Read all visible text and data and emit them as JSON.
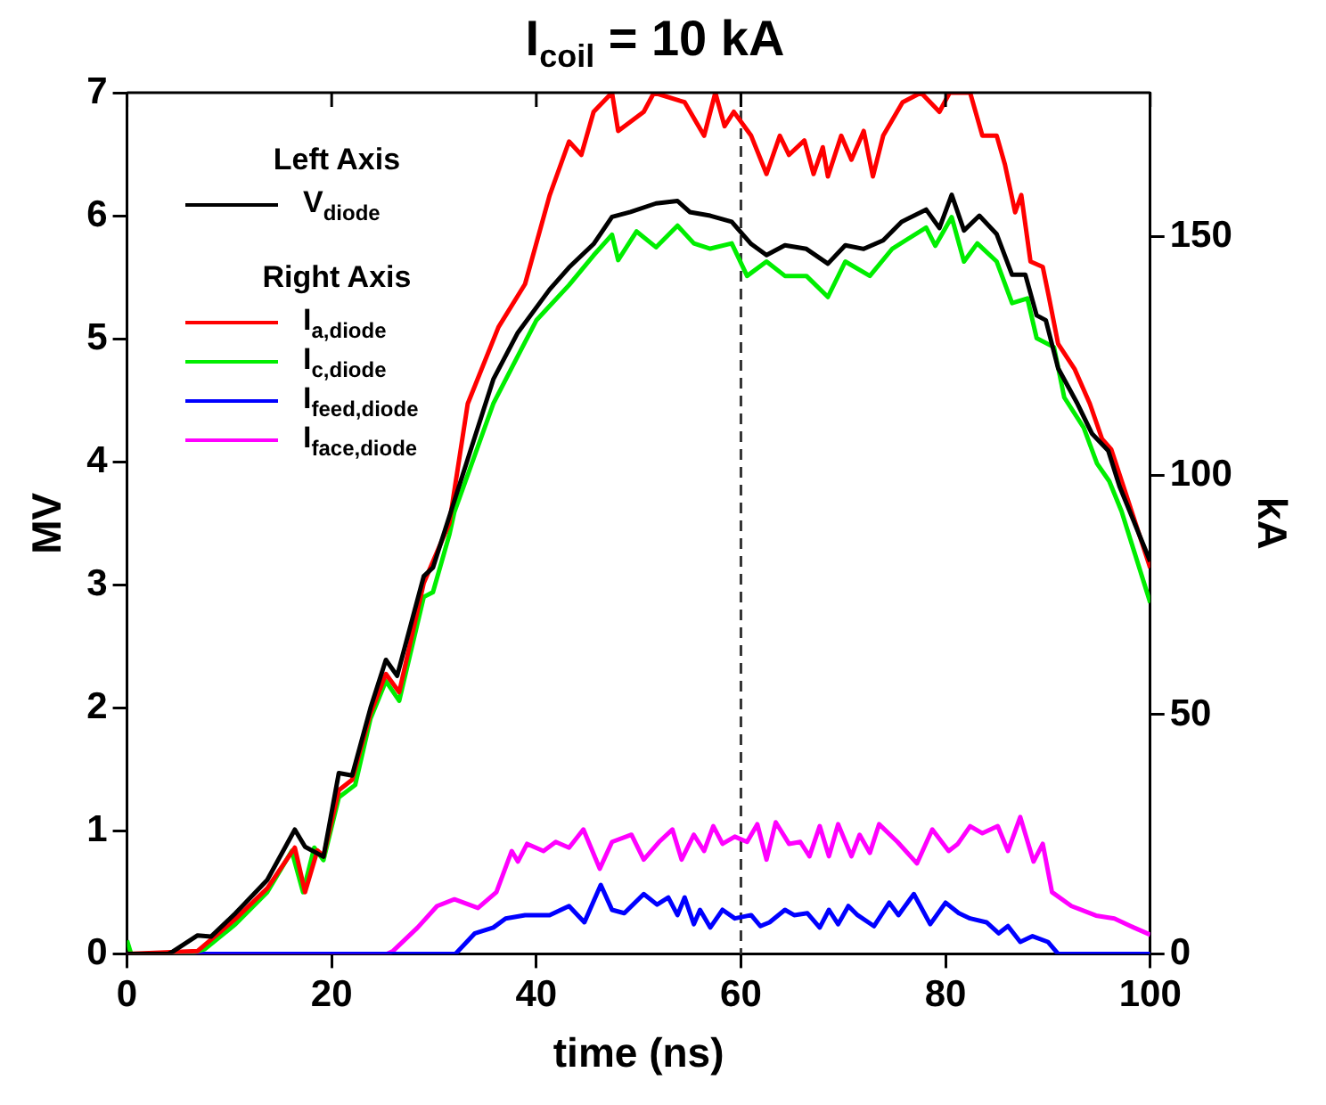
{
  "chart_data": {
    "type": "line",
    "title": "I$_{coil}$ = 10 kA",
    "xlabel": "time (ns)",
    "ylabel": "MV",
    "y2label": "kA",
    "xlim": [
      0,
      100
    ],
    "xticks": [
      0,
      20,
      40,
      60,
      80,
      100
    ],
    "ylim": [
      0,
      7
    ],
    "yticks": [
      0,
      1,
      2,
      3,
      4,
      5,
      6,
      7
    ],
    "y2lim": [
      0,
      180
    ],
    "y2ticks": [
      0,
      50,
      100,
      150
    ],
    "grid": false,
    "legend": "top left",
    "marker": "none",
    "line_style": "solid",
    "annotations": [
      "Left Axis",
      "Right Axis"
    ],
    "ref_lines": [
      {
        "axis": "x",
        "value": 60,
        "color": "#333333",
        "line_style": "dashed"
      }
    ],
    "series": [
      {
        "name": "V$_{diode}$",
        "color": "#000000",
        "axis": "y",
        "x": [
          0,
          4,
          4.5,
          6.9,
          8.2,
          10.6,
          13.7,
          16.4,
          17.4,
          19.2,
          20.7,
          22,
          23.8,
          25.3,
          26.4,
          29,
          29.9,
          35.8,
          38.2,
          41.3,
          43.2,
          45.6,
          47.4,
          49.2,
          51.7,
          53.8,
          55,
          57,
          59.1,
          61,
          62.5,
          64.3,
          66.4,
          68.5,
          70.2,
          72,
          73.9,
          75.7,
          78.1,
          79.4,
          80.6,
          81.8,
          83.3,
          85,
          86.5,
          87.8,
          88.9,
          89.8,
          91,
          92.9,
          94.3,
          95.9,
          97,
          100
        ],
        "values": [
          0,
          0,
          0.02,
          0.15,
          0.14,
          0.33,
          0.6,
          1.01,
          0.87,
          0.79,
          1.47,
          1.45,
          2.0,
          2.39,
          2.26,
          3.07,
          3.14,
          4.67,
          5.05,
          5.4,
          5.58,
          5.77,
          5.99,
          6.03,
          6.1,
          6.12,
          6.03,
          6.0,
          5.95,
          5.77,
          5.68,
          5.76,
          5.73,
          5.61,
          5.76,
          5.73,
          5.8,
          5.95,
          6.05,
          5.9,
          6.17,
          5.88,
          6.0,
          5.85,
          5.52,
          5.52,
          5.19,
          5.15,
          4.76,
          4.47,
          4.23,
          4.09,
          3.8,
          3.19
        ]
      },
      {
        "name": "I$_{a,diode}$",
        "color": "#ff0000",
        "axis": "y2",
        "x": [
          0,
          6.9,
          10.6,
          13.7,
          16.4,
          17.4,
          18.6,
          19.2,
          20.7,
          22,
          23.8,
          25.3,
          26.6,
          29,
          31.5,
          33.3,
          36.3,
          38.9,
          41.3,
          43.2,
          44.4,
          45.6,
          47.4,
          48,
          50.5,
          51.5,
          54.5,
          56.4,
          57.5,
          58.4,
          59.3,
          61,
          62.5,
          63.8,
          64.7,
          66.2,
          67.1,
          68,
          68.5,
          69.8,
          70.8,
          72,
          72.9,
          73.9,
          75.8,
          77.6,
          79.4,
          80.4,
          82.4,
          83.6,
          85,
          85.8,
          86.8,
          87.4,
          88.3,
          89.5,
          90.1,
          91,
          92.6,
          94.1,
          95.3,
          96.2,
          97.8,
          100
        ],
        "values": [
          0,
          0.6,
          7.3,
          13.7,
          22.2,
          12.9,
          21.6,
          20.4,
          34.2,
          36.4,
          50.3,
          58.5,
          54.7,
          77.5,
          90,
          115,
          131,
          140,
          158.5,
          169.8,
          167,
          176,
          180,
          172,
          176,
          180,
          178,
          171,
          180,
          173,
          176,
          171,
          163,
          171,
          167,
          170,
          163,
          168.6,
          162.5,
          171,
          166,
          172,
          162.5,
          171,
          178,
          180,
          176,
          180,
          180,
          171,
          171,
          165,
          155,
          158.6,
          144.7,
          143.6,
          137.3,
          127.5,
          122.3,
          115,
          107.6,
          105.4,
          95,
          80.7
        ]
      },
      {
        "name": "I$_{c,diode}$",
        "color": "#00ee00",
        "axis": "y2",
        "x": [
          0,
          0.4,
          1,
          6,
          7.6,
          10.6,
          13.7,
          16.1,
          17.2,
          18.3,
          19.2,
          20.7,
          22.3,
          23.8,
          25.3,
          26.6,
          29,
          29.9,
          31.5,
          32,
          35.8,
          38.2,
          40,
          43.2,
          45.6,
          47.4,
          48,
          49.8,
          51.7,
          53.8,
          55.4,
          57,
          59.1,
          60.6,
          62.5,
          64.3,
          66.4,
          68.5,
          70.2,
          72.6,
          74.8,
          78.1,
          79,
          80.6,
          81.8,
          83.1,
          85,
          86.5,
          88,
          88.9,
          90.6,
          91.6,
          93.5,
          94.8,
          96,
          97.2,
          100
        ],
        "values": [
          2.8,
          0,
          0,
          0,
          1,
          6.2,
          12.9,
          21.5,
          12.9,
          22.2,
          19.6,
          32.7,
          35.3,
          49.2,
          57,
          52.9,
          74.6,
          75.6,
          87.6,
          92.4,
          115,
          125,
          132.4,
          139.8,
          146,
          150.3,
          145,
          151,
          147.7,
          152.2,
          148.5,
          147.4,
          148.5,
          141.7,
          144.7,
          141.7,
          141.7,
          137.3,
          144.7,
          141.7,
          147.4,
          151.8,
          148,
          154,
          144.7,
          148.5,
          144.7,
          136,
          137,
          128.7,
          126.8,
          116.3,
          110,
          102.5,
          98.8,
          92.5,
          73.4
        ]
      },
      {
        "name": "I$_{feed,diode}$",
        "color": "#0000ff",
        "axis": "y2",
        "x": [
          0,
          32.1,
          34,
          35.8,
          37,
          38.9,
          41.3,
          43.2,
          44.7,
          46.3,
          47.4,
          48.6,
          50.5,
          51.8,
          52.9,
          53.8,
          54.5,
          55.4,
          56,
          57,
          58.2,
          59.4,
          61,
          61.9,
          62.8,
          64.3,
          65.2,
          66.5,
          67.7,
          68.6,
          69.5,
          70.5,
          71.4,
          73,
          74.5,
          75.4,
          76.9,
          78.5,
          80,
          81.3,
          82.4,
          84,
          85.2,
          86.1,
          87.3,
          88.5,
          90,
          91,
          100
        ],
        "values": [
          0,
          0,
          4.3,
          5.5,
          7.4,
          8.1,
          8.1,
          10,
          6.6,
          14.4,
          9.2,
          8.5,
          12.5,
          10.3,
          11.8,
          8.1,
          11.8,
          6.2,
          9.2,
          5.5,
          9.2,
          7.4,
          8.1,
          5.8,
          6.6,
          9.2,
          8.1,
          8.5,
          5.5,
          9.2,
          6.2,
          10,
          8.1,
          5.8,
          10.7,
          8.1,
          12.5,
          6.2,
          10.7,
          8.5,
          7.4,
          6.6,
          4.3,
          5.8,
          2.5,
          3.7,
          2.5,
          0,
          0
        ]
      },
      {
        "name": "I$_{face,diode}$",
        "color": "#ff00ff",
        "axis": "y2",
        "x": [
          0,
          25.4,
          26,
          28.4,
          30.3,
          32,
          34.3,
          36.1,
          37.6,
          38.2,
          39.1,
          40.7,
          41.9,
          43.2,
          44.6,
          46.2,
          47.4,
          49.3,
          50.5,
          52,
          53.3,
          54.2,
          55.4,
          56.4,
          57.3,
          58.2,
          59.4,
          60.6,
          61.6,
          62.5,
          63.4,
          64.7,
          65.8,
          66.7,
          67.7,
          68.6,
          69.5,
          70.8,
          71.6,
          72.6,
          73.5,
          75.3,
          77.2,
          78.7,
          80.3,
          81.2,
          82.4,
          83.6,
          85.1,
          86.1,
          87.3,
          88.6,
          89.5,
          90.4,
          92.3,
          94.7,
          96.5,
          98.4,
          100
        ],
        "values": [
          0,
          0,
          0.6,
          5.5,
          10,
          11.4,
          9.6,
          12.9,
          21.5,
          19.3,
          23,
          21.5,
          23.4,
          22.2,
          26,
          17.8,
          23.4,
          24.9,
          19.7,
          23.4,
          26,
          19.7,
          24.9,
          21.5,
          26.7,
          23,
          24.5,
          23.4,
          27.1,
          19.7,
          27.5,
          23,
          23.4,
          20.4,
          26.7,
          20.4,
          27.1,
          20.4,
          24.9,
          21.1,
          27.1,
          23.4,
          18.9,
          26,
          21.5,
          23,
          26.7,
          25.2,
          26.7,
          21.5,
          28.6,
          19.3,
          23,
          12.9,
          10,
          8,
          7.4,
          5.5,
          4
        ]
      }
    ]
  }
}
